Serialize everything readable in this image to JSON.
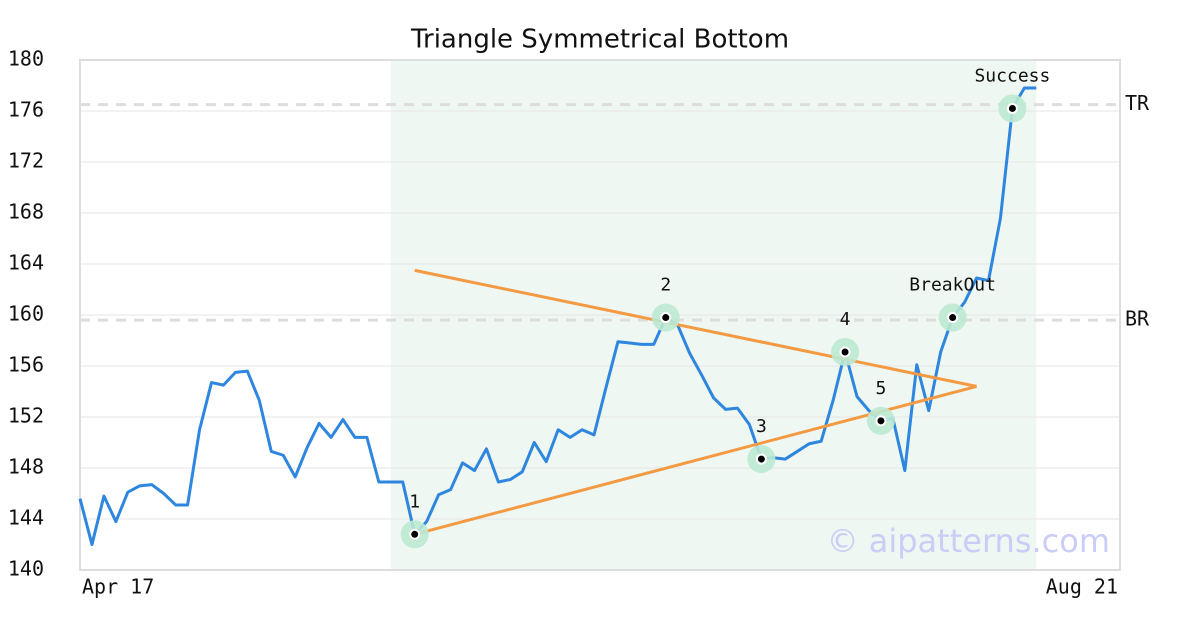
{
  "chart_data": {
    "type": "line",
    "title": "Triangle Symmetrical Bottom",
    "categories": [
      "Apr 17",
      null,
      null,
      null,
      null,
      null,
      null,
      null,
      null,
      null,
      null,
      null,
      null,
      null,
      null,
      null,
      null,
      null,
      null,
      null,
      null,
      null,
      null,
      null,
      null,
      null,
      null,
      null,
      null,
      null,
      null,
      null,
      null,
      null,
      null,
      null,
      null,
      null,
      null,
      null,
      null,
      null,
      null,
      null,
      null,
      null,
      null,
      null,
      null,
      null,
      null,
      null,
      null,
      null,
      null,
      null,
      null,
      null,
      null,
      null,
      null,
      null,
      null,
      null,
      null,
      null,
      null,
      null,
      null,
      null,
      null,
      null,
      null,
      null,
      null,
      null,
      null,
      null,
      null,
      null,
      null,
      null,
      null,
      null,
      null,
      null,
      null,
      "Aug 21"
    ],
    "series": [
      {
        "color": "#2e86de",
        "values": [
          145.6,
          142.0,
          145.8,
          143.8,
          146.1,
          146.6,
          146.7,
          146.0,
          145.1,
          145.1,
          151.0,
          154.7,
          154.5,
          155.5,
          155.6,
          153.3,
          149.3,
          149.0,
          147.3,
          149.6,
          151.5,
          150.4,
          151.8,
          150.4,
          150.4,
          146.9,
          146.9,
          146.9,
          142.8,
          143.8,
          145.9,
          146.3,
          148.4,
          147.8,
          149.5,
          146.9,
          147.1,
          147.7,
          150.0,
          148.5,
          151.0,
          150.4,
          151.0,
          150.6,
          154.3,
          157.9,
          157.8,
          157.7,
          157.7,
          159.8,
          159.2,
          157.0,
          155.3,
          153.5,
          152.6,
          152.7,
          151.4,
          148.7,
          148.8,
          148.7,
          149.3,
          149.9,
          150.1,
          153.3,
          157.1,
          153.6,
          152.5,
          151.7,
          151.9,
          147.8,
          156.1,
          152.5,
          157.1,
          159.8,
          161.0,
          162.9,
          162.7,
          167.6,
          176.2,
          177.8,
          177.8,
          null,
          null,
          null,
          null,
          null,
          null,
          null
        ]
      }
    ],
    "ylim": [
      140,
      180
    ],
    "yticks": [
      140,
      144,
      148,
      152,
      156,
      160,
      164,
      168,
      172,
      176,
      180
    ],
    "grid": true,
    "highlight": {
      "start": 26,
      "end": 80,
      "color": "#eef7f2"
    },
    "trendlines": [
      {
        "x": [
          28,
          75
        ],
        "values": [
          163.5,
          154.4
        ],
        "color": "#f39a43"
      },
      {
        "x": [
          28,
          75
        ],
        "values": [
          142.8,
          154.4
        ],
        "color": "#f39a43"
      }
    ],
    "levels": [
      {
        "label": "TR",
        "value": 176.5
      },
      {
        "label": "BR",
        "value": 159.6
      }
    ],
    "points": [
      {
        "label": "1",
        "index": 28,
        "value": 142.8
      },
      {
        "label": "2",
        "index": 49,
        "value": 159.8
      },
      {
        "label": "3",
        "index": 57,
        "value": 148.7
      },
      {
        "label": "4",
        "index": 64,
        "value": 157.1
      },
      {
        "label": "5",
        "index": 67,
        "value": 151.7
      },
      {
        "label": "BreakOut",
        "index": 73,
        "value": 159.8
      },
      {
        "label": "Success",
        "index": 78,
        "value": 176.2
      }
    ],
    "watermark": "© aipatterns.com"
  }
}
